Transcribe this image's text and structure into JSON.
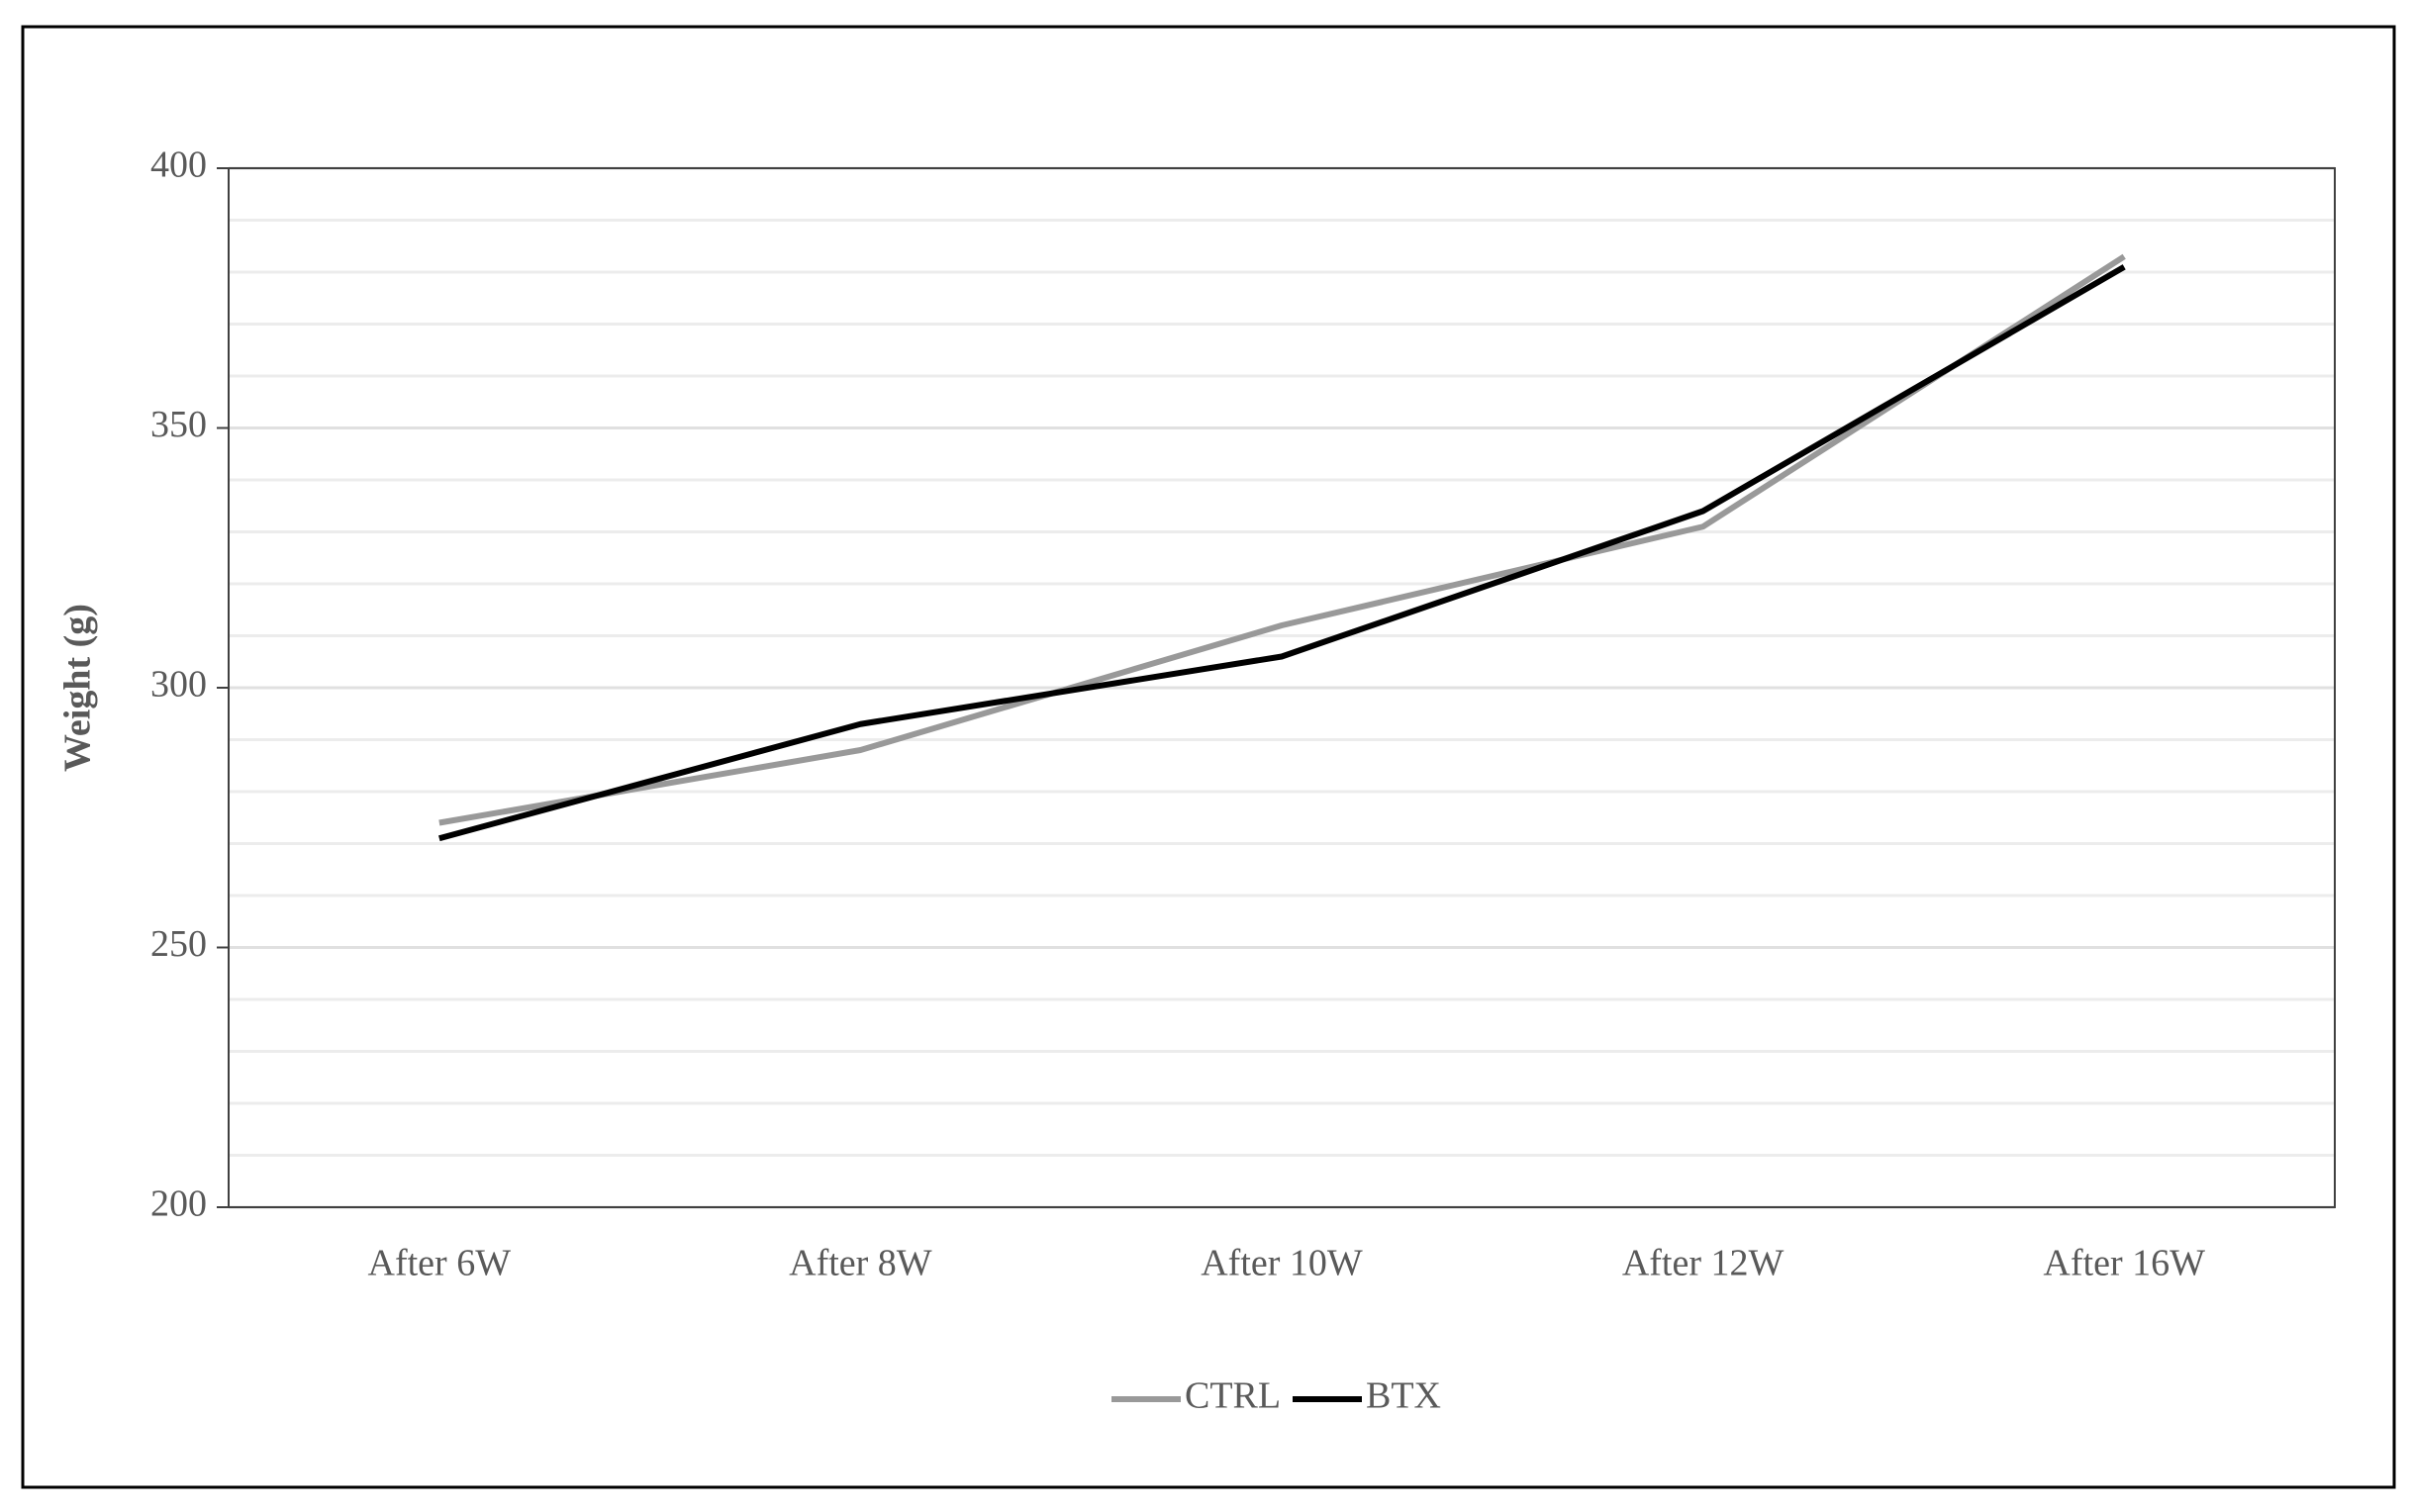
{
  "chart_data": {
    "type": "line",
    "y_label": "Weight (g)",
    "categories": [
      "After 6W",
      "After 8W",
      "After 10W",
      "After 12W",
      "After 16W"
    ],
    "series": [
      {
        "name": "CTRL",
        "color": "#999999",
        "values": [
          274,
          288,
          312,
          331,
          383
        ]
      },
      {
        "name": "BTX",
        "color": "#000000",
        "values": [
          271,
          293,
          306,
          334,
          381
        ]
      }
    ],
    "ylim": [
      200,
      400
    ],
    "yticks": [
      200,
      250,
      300,
      350,
      400
    ],
    "minor_yticks": [
      210,
      220,
      230,
      240,
      260,
      270,
      280,
      290,
      310,
      320,
      330,
      340,
      360,
      370,
      380,
      390
    ],
    "grid": true,
    "legend": "bottom"
  }
}
